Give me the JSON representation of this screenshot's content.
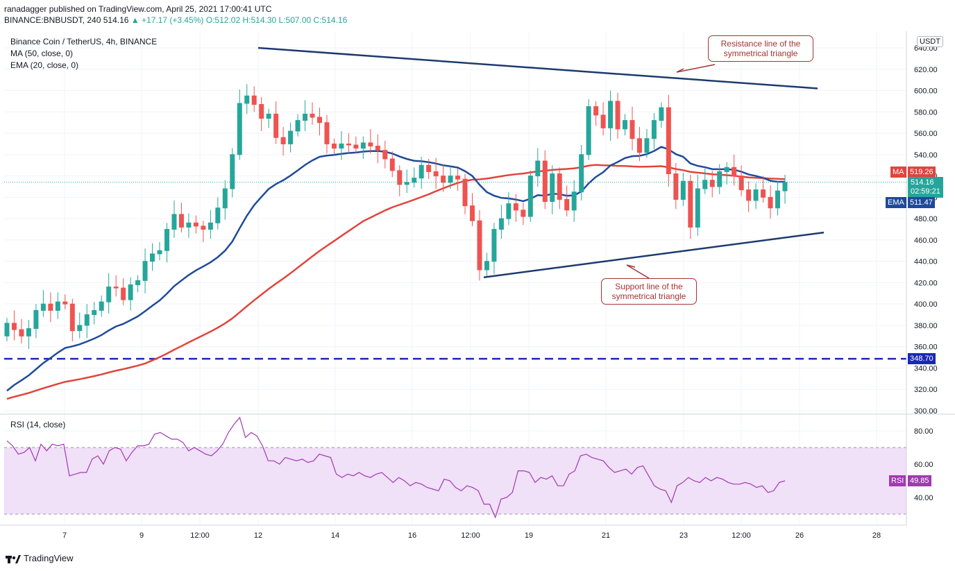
{
  "header": {
    "publish_line": "ranadagger published on TradingView.com, April 25, 2021 17:00:41 UTC",
    "symbol_line_prefix": "BINANCE:BNBUSDT, 240",
    "last": "514.16",
    "change": "+17.17 (+3.45%)",
    "ohlc": "O:512.02 H:514.30 L:507.00 C:514.16"
  },
  "legend": {
    "title": "Binance Coin / TetherUS, 4h, BINANCE",
    "ma": "MA (50, close, 0)",
    "ema": "EMA (20, close, 0)",
    "rsi": "RSI (14, close)"
  },
  "currency_label": "USDT",
  "badges": {
    "ma_label": "MA",
    "ma_value": "519.26",
    "price_value": "514.16",
    "countdown": "02:59:21",
    "ema_label": "EMA",
    "ema_value": "511.47",
    "level_value": "348.70",
    "rsi_label": "RSI",
    "rsi_value": "49.85"
  },
  "annotations": {
    "resistance": "Resistance line of the symmetrical triangle",
    "support": "Support line of the symmetrical triangle"
  },
  "brand": "TradingView",
  "colors": {
    "up": "#26a69a",
    "down": "#ef5350",
    "ma": "#e0443c",
    "ema": "#1e4a99",
    "trend": "#1d3a6e",
    "level": "#1a28b8",
    "rsi": "#a03ab0",
    "rsi_band": "#f0e0f8",
    "callout": "#a33232"
  },
  "chart_data": [
    {
      "type": "candlestick",
      "title": "Binance Coin / TetherUS, 4h, BINANCE",
      "y_unit": "USDT",
      "ylim": [
        290,
        650
      ],
      "y_ticks": [
        "300.00",
        "320.00",
        "340.00",
        "360.00",
        "380.00",
        "400.00",
        "420.00",
        "440.00",
        "460.00",
        "480.00",
        "500.00",
        "520.00",
        "540.00",
        "560.00",
        "580.00",
        "600.00",
        "620.00",
        "640.00"
      ],
      "x_ticks": [
        "7",
        "9",
        "12:00",
        "12",
        "14",
        "16",
        "12:00",
        "19",
        "21",
        "23",
        "12:00",
        "26",
        "28"
      ],
      "close": [
        382,
        376,
        370,
        377,
        394,
        400,
        394,
        402,
        400,
        375,
        380,
        390,
        394,
        402,
        416,
        415,
        404,
        418,
        422,
        440,
        447,
        450,
        470,
        484,
        472,
        476,
        473,
        470,
        476,
        490,
        508,
        540,
        588,
        595,
        587,
        574,
        578,
        556,
        550,
        562,
        572,
        578,
        575,
        570,
        550,
        546,
        550,
        549,
        546,
        551,
        548,
        544,
        536,
        525,
        512,
        514,
        518,
        530,
        524,
        520,
        514,
        520,
        517,
        492,
        478,
        432,
        440,
        470,
        480,
        494,
        488,
        482,
        520,
        534,
        496,
        522,
        498,
        488,
        505,
        540,
        585,
        577,
        565,
        590,
        564,
        572,
        555,
        542,
        555,
        572,
        584,
        522,
        498,
        515,
        472,
        508,
        516,
        510,
        524,
        528,
        520,
        507,
        497,
        507,
        500,
        490,
        506,
        514
      ],
      "trendlines": [
        {
          "name": "Resistance line of the symmetrical triangle",
          "start": 640,
          "end": 602
        },
        {
          "name": "Support line of the symmetrical triangle",
          "start": 425,
          "end": 467
        }
      ],
      "horizontal_level": 348.7,
      "series": [
        {
          "name": "MA (50, close, 0)",
          "last": 519.26
        },
        {
          "name": "EMA (20, close, 0)",
          "last": 511.47
        }
      ]
    },
    {
      "type": "line",
      "title": "RSI (14, close)",
      "ylim": [
        20,
        90
      ],
      "y_ticks": [
        "40.00",
        "60.00",
        "80.00"
      ],
      "band": [
        30,
        70
      ],
      "values": [
        74,
        71,
        66,
        67,
        70,
        62,
        72,
        68,
        72,
        71,
        72,
        53,
        54,
        55,
        55,
        63,
        65,
        60,
        68,
        70,
        69,
        62,
        67,
        71,
        71,
        72,
        78,
        79,
        77,
        75,
        75,
        73,
        68,
        70,
        68,
        66,
        65,
        68,
        72,
        79,
        84,
        88,
        76,
        79,
        77,
        71,
        62,
        62,
        60,
        64,
        63,
        62,
        63,
        61,
        62,
        66,
        65,
        64,
        54,
        52,
        54,
        53,
        55,
        53,
        52,
        54,
        55,
        52,
        49,
        52,
        50,
        47,
        49,
        48,
        46,
        45,
        44,
        51,
        50,
        46,
        44,
        47,
        46,
        44,
        36,
        36,
        28,
        39,
        40,
        43,
        56,
        56,
        55,
        49,
        52,
        51,
        53,
        47,
        47,
        54,
        56,
        65,
        66,
        64,
        63,
        62,
        58,
        55,
        56,
        57,
        54,
        58,
        59,
        53,
        47,
        45,
        44,
        37,
        47,
        49,
        52,
        50,
        49,
        52,
        50,
        52,
        51,
        49,
        48,
        48,
        49,
        48,
        46,
        47,
        43,
        44,
        49,
        50
      ]
    }
  ]
}
